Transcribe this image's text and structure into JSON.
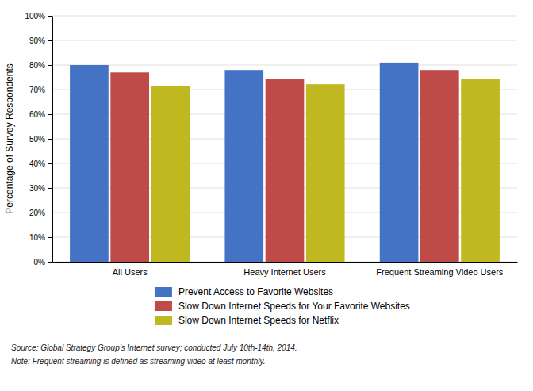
{
  "chart_data": {
    "type": "bar",
    "categories": [
      "All Users",
      "Heavy Internet Users",
      "Frequent Streaming Video Users"
    ],
    "series": [
      {
        "name": "Prevent Access to Favorite Websites",
        "color": "#4472C4",
        "values": [
          0.8,
          0.78,
          0.81
        ]
      },
      {
        "name": "Slow Down Internet Speeds for Your Favorite Websites",
        "color": "#BE4B48",
        "values": [
          0.77,
          0.745,
          0.78
        ]
      },
      {
        "name": "Slow Down Internet Speeds for Netflix",
        "color": "#C0B820",
        "values": [
          0.715,
          0.722,
          0.745
        ]
      }
    ],
    "ylabel": "Percentage of Survey Respondents",
    "ylim": [
      0,
      1.0
    ],
    "yticks": [
      {
        "value": 0.0,
        "label": "0%"
      },
      {
        "value": 0.1,
        "label": "10%"
      },
      {
        "value": 0.2,
        "label": "20%"
      },
      {
        "value": 0.3,
        "label": "30%"
      },
      {
        "value": 0.4,
        "label": "40%"
      },
      {
        "value": 0.5,
        "label": "50%"
      },
      {
        "value": 0.6,
        "label": "60%"
      },
      {
        "value": 0.7,
        "label": "70%"
      },
      {
        "value": 0.8,
        "label": "80%"
      },
      {
        "value": 0.9,
        "label": "90%"
      },
      {
        "value": 1.0,
        "label": "100%"
      }
    ],
    "grid": true,
    "legend": "bottom",
    "annotations": [
      "Source: Global Strategy Group’s Internet survey; conducted July 10th-14th, 2014.",
      "Note: Frequent streaming is defined as streaming video at least monthly."
    ]
  }
}
